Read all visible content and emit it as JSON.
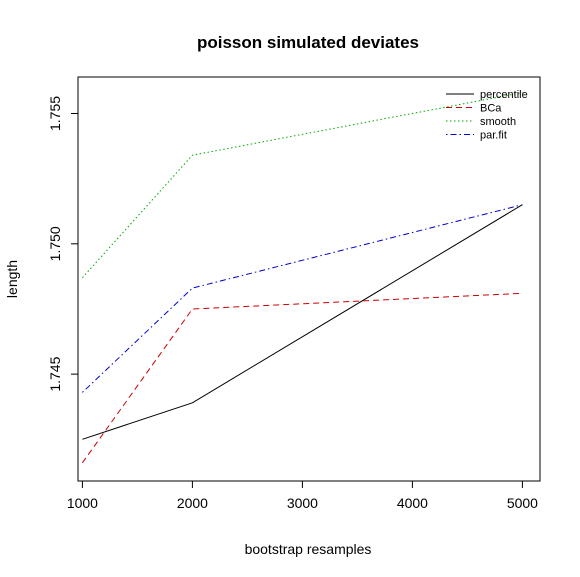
{
  "chart_data": {
    "type": "line",
    "title": "poisson simulated deviates",
    "xlabel": "bootstrap resamples",
    "ylabel": "length",
    "x": [
      1000,
      2000,
      5000
    ],
    "x_ticks": [
      "1000",
      "2000",
      "3000",
      "4000",
      "5000"
    ],
    "x_tick_values": [
      1000,
      2000,
      3000,
      4000,
      5000
    ],
    "y_ticks": [
      "1.745",
      "1.750",
      "1.755"
    ],
    "y_tick_values": [
      1.745,
      1.75,
      1.755
    ],
    "xlim": [
      960,
      5160
    ],
    "ylim": [
      1.7409,
      1.7564
    ],
    "grid": false,
    "legend_position": "top-right",
    "series": [
      {
        "name": "percentile",
        "color": "#000000",
        "dash": "solid",
        "values": [
          1.7425,
          1.7439,
          1.7515
        ]
      },
      {
        "name": "BCa",
        "color": "#cc0000",
        "dash": "dashed",
        "values": [
          1.7416,
          1.7475,
          1.7481
        ]
      },
      {
        "name": "smooth",
        "color": "#00aa00",
        "dash": "dotted",
        "values": [
          1.7487,
          1.7534,
          1.7558
        ]
      },
      {
        "name": "par.fit",
        "color": "#0000cc",
        "dash": "dotdash",
        "values": [
          1.7443,
          1.7483,
          1.7515
        ]
      }
    ]
  }
}
